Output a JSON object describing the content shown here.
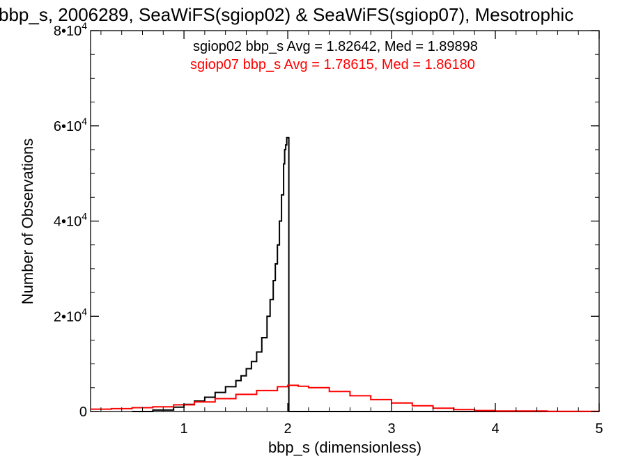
{
  "chart_data": {
    "type": "line",
    "title": "bbp_s, 2006289, SeaWiFS(sgiop02) & SeaWiFS(sgiop07), Mesotrophic",
    "xlabel": "bbp_s (dimensionless)",
    "ylabel": "Number of Observations",
    "xlim": [
      0.1,
      5.0
    ],
    "ylim": [
      0,
      80000
    ],
    "x_ticks": [
      {
        "value": 1,
        "label": "1"
      },
      {
        "value": 2,
        "label": "2"
      },
      {
        "value": 3,
        "label": "3"
      },
      {
        "value": 4,
        "label": "4"
      },
      {
        "value": 5,
        "label": "5"
      }
    ],
    "y_ticks": [
      {
        "value": 0,
        "mantissa": "0",
        "exp": ""
      },
      {
        "value": 20000,
        "mantissa": "2•10",
        "exp": "4"
      },
      {
        "value": 40000,
        "mantissa": "4•10",
        "exp": "4"
      },
      {
        "value": 60000,
        "mantissa": "6•10",
        "exp": "4"
      },
      {
        "value": 80000,
        "mantissa": "8•10",
        "exp": "4"
      }
    ],
    "annotations": [
      {
        "text": "sgiop02 bbp_s Avg = 1.82642, Med = 1.89898",
        "color": "#000000"
      },
      {
        "text": "sgiop07 bbp_s Avg = 1.78615, Med = 1.86180",
        "color": "#ff0000"
      }
    ],
    "series": [
      {
        "color": "#000000",
        "step": true,
        "x": [
          0.5,
          0.7,
          0.9,
          1.0,
          1.1,
          1.2,
          1.3,
          1.4,
          1.5,
          1.55,
          1.6,
          1.65,
          1.7,
          1.75,
          1.8,
          1.83,
          1.86,
          1.88,
          1.9,
          1.92,
          1.94,
          1.96,
          1.97,
          1.98,
          1.99,
          2.0,
          2.01,
          2.05,
          5.0
        ],
        "y": [
          0,
          300,
          900,
          1500,
          2200,
          3000,
          4000,
          5200,
          6500,
          7500,
          9000,
          10500,
          12500,
          15500,
          20000,
          23500,
          27500,
          31000,
          35000,
          40000,
          45500,
          52000,
          55000,
          56000,
          57500,
          57500,
          0,
          0,
          0
        ]
      },
      {
        "color": "#ff0000",
        "step": true,
        "x": [
          0.1,
          0.3,
          0.5,
          0.7,
          0.9,
          1.1,
          1.3,
          1.5,
          1.7,
          1.9,
          2.0,
          2.1,
          2.2,
          2.4,
          2.6,
          2.8,
          3.0,
          3.2,
          3.4,
          3.6,
          3.8,
          4.0,
          4.5,
          5.0
        ],
        "y": [
          500,
          600,
          800,
          1000,
          1400,
          2000,
          2700,
          3600,
          4400,
          5200,
          5500,
          5300,
          5000,
          4200,
          3300,
          2500,
          1800,
          1200,
          700,
          400,
          200,
          100,
          30,
          0
        ]
      }
    ]
  }
}
